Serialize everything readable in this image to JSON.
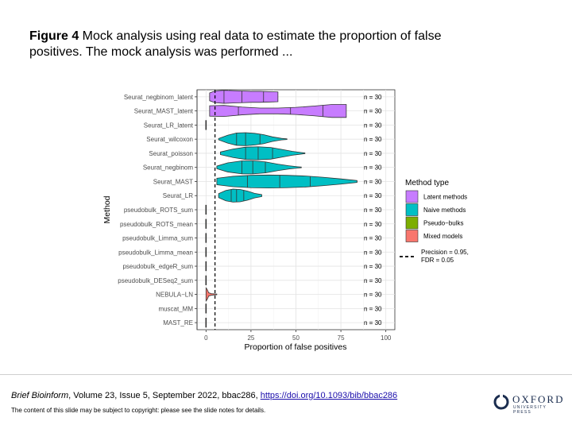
{
  "caption": {
    "figure_label": "Figure 4",
    "text": " Mock analysis using real data to estimate the proportion of false positives. The mock analysis was performed ..."
  },
  "chart_data": {
    "type": "violin",
    "xlabel": "Proportion of false positives",
    "ylabel": "Method",
    "xlim": [
      -5,
      105
    ],
    "xticks": [
      0,
      25,
      50,
      75,
      100
    ],
    "reference_line": {
      "x": 5,
      "label": "Precision = 0.95, FDR = 0.05"
    },
    "legend": {
      "title": "Method type",
      "position": "right",
      "entries": [
        {
          "name": "Latent methods",
          "color": "#C77CFF"
        },
        {
          "name": "Naive methods",
          "color": "#00BFC4"
        },
        {
          "name": "Pseudo−bulks",
          "color": "#7CAE00"
        },
        {
          "name": "Mixed models",
          "color": "#F8766D"
        }
      ]
    },
    "methods": [
      {
        "name": "Seurat_negbinom_latent",
        "type": "Latent methods",
        "n_label": "n = 30",
        "min": 2,
        "max": 40,
        "quantiles": [
          10,
          20,
          32
        ],
        "profile": [
          [
            2,
            0.6
          ],
          [
            5,
            0.9
          ],
          [
            10,
            1
          ],
          [
            15,
            0.95
          ],
          [
            20,
            0.9
          ],
          [
            25,
            0.85
          ],
          [
            30,
            0.85
          ],
          [
            35,
            0.8
          ],
          [
            40,
            0.75
          ]
        ]
      },
      {
        "name": "Seurat_MAST_latent",
        "type": "Latent methods",
        "n_label": "n = 30",
        "min": 2,
        "max": 78,
        "quantiles": [
          18,
          47,
          65
        ],
        "profile": [
          [
            2,
            0.8
          ],
          [
            10,
            0.85
          ],
          [
            20,
            0.6
          ],
          [
            30,
            0.45
          ],
          [
            40,
            0.45
          ],
          [
            50,
            0.55
          ],
          [
            60,
            0.75
          ],
          [
            70,
            1
          ],
          [
            78,
            1
          ]
        ]
      },
      {
        "name": "Seurat_LR_latent",
        "type": "Latent methods",
        "n_label": "n = 30",
        "min": 0,
        "max": 0.5,
        "quantiles": [],
        "profile": [
          [
            0,
            0.8
          ],
          [
            0.5,
            0.8
          ]
        ]
      },
      {
        "name": "Seurat_wilcoxon",
        "type": "Naive methods",
        "n_label": "n = 30",
        "min": 7,
        "max": 45,
        "quantiles": [
          17,
          22,
          30
        ],
        "profile": [
          [
            7,
            0.1
          ],
          [
            12,
            0.6
          ],
          [
            17,
            0.95
          ],
          [
            22,
            1
          ],
          [
            27,
            0.9
          ],
          [
            32,
            0.7
          ],
          [
            37,
            0.35
          ],
          [
            42,
            0.12
          ],
          [
            45,
            0.05
          ]
        ]
      },
      {
        "name": "Seurat_poisson",
        "type": "Naive methods",
        "n_label": "n = 30",
        "min": 8,
        "max": 55,
        "quantiles": [
          22,
          29,
          37
        ],
        "profile": [
          [
            8,
            0.2
          ],
          [
            15,
            0.65
          ],
          [
            22,
            0.95
          ],
          [
            29,
            1
          ],
          [
            36,
            0.9
          ],
          [
            42,
            0.6
          ],
          [
            48,
            0.3
          ],
          [
            53,
            0.12
          ],
          [
            55,
            0.05
          ]
        ]
      },
      {
        "name": "Seurat_negbinom",
        "type": "Naive methods",
        "n_label": "n = 30",
        "min": 6,
        "max": 53,
        "quantiles": [
          20,
          26,
          33
        ],
        "profile": [
          [
            6,
            0.2
          ],
          [
            12,
            0.7
          ],
          [
            20,
            1
          ],
          [
            26,
            1
          ],
          [
            33,
            0.85
          ],
          [
            40,
            0.5
          ],
          [
            46,
            0.25
          ],
          [
            51,
            0.1
          ],
          [
            53,
            0.05
          ]
        ]
      },
      {
        "name": "Seurat_MAST",
        "type": "Naive methods",
        "n_label": "n = 30",
        "min": 6,
        "max": 84,
        "quantiles": [
          23,
          41,
          58
        ],
        "profile": [
          [
            6,
            0.5
          ],
          [
            15,
            0.8
          ],
          [
            25,
            0.95
          ],
          [
            35,
            1
          ],
          [
            45,
            0.95
          ],
          [
            55,
            0.85
          ],
          [
            65,
            0.65
          ],
          [
            75,
            0.4
          ],
          [
            84,
            0.15
          ]
        ]
      },
      {
        "name": "Seurat_LR",
        "type": "Naive methods",
        "n_label": "n = 30",
        "min": 7,
        "max": 31,
        "quantiles": [
          14,
          17,
          21
        ],
        "profile": [
          [
            7,
            0.3
          ],
          [
            11,
            0.8
          ],
          [
            15,
            1
          ],
          [
            19,
            0.95
          ],
          [
            23,
            0.7
          ],
          [
            27,
            0.35
          ],
          [
            31,
            0.15
          ]
        ]
      },
      {
        "name": "pseudobulk_ROTS_sum",
        "type": "Pseudo−bulks",
        "n_label": "n = 30",
        "min": 0,
        "max": 0.3,
        "quantiles": [],
        "profile": [
          [
            0,
            0.5
          ],
          [
            0.3,
            0.5
          ]
        ]
      },
      {
        "name": "pseudobulk_ROTS_mean",
        "type": "Pseudo−bulks",
        "n_label": "n = 30",
        "min": 0,
        "max": 0.3,
        "quantiles": [],
        "profile": [
          [
            0,
            0.5
          ],
          [
            0.3,
            0.5
          ]
        ]
      },
      {
        "name": "pseudobulk_Limma_sum",
        "type": "Pseudo−bulks",
        "n_label": "n = 30",
        "min": 0,
        "max": 0.3,
        "quantiles": [],
        "profile": [
          [
            0,
            0.5
          ],
          [
            0.3,
            0.5
          ]
        ]
      },
      {
        "name": "pseudobulk_Limma_mean",
        "type": "Pseudo−bulks",
        "n_label": "n = 30",
        "min": 0,
        "max": 0.3,
        "quantiles": [],
        "profile": [
          [
            0,
            0.5
          ],
          [
            0.3,
            0.5
          ]
        ]
      },
      {
        "name": "pseudobulk_edgeR_sum",
        "type": "Pseudo−bulks",
        "n_label": "n = 30",
        "min": 0,
        "max": 0.3,
        "quantiles": [],
        "profile": [
          [
            0,
            0.5
          ],
          [
            0.3,
            0.5
          ]
        ]
      },
      {
        "name": "pseudobulk_DESeq2_sum",
        "type": "Pseudo−bulks",
        "n_label": "n = 30",
        "min": 0,
        "max": 0.3,
        "quantiles": [],
        "profile": [
          [
            0,
            0.5
          ],
          [
            0.3,
            0.5
          ]
        ]
      },
      {
        "name": "NEBULA−LN",
        "type": "Mixed models",
        "n_label": "n = 30",
        "min": 0,
        "max": 6,
        "quantiles": [],
        "profile": [
          [
            0,
            1
          ],
          [
            0.6,
            0.8
          ],
          [
            1.5,
            0.25
          ],
          [
            3,
            0.12
          ],
          [
            6,
            0.05
          ]
        ]
      },
      {
        "name": "muscat_MM",
        "type": "Mixed models",
        "n_label": "n = 30",
        "min": 0,
        "max": 0.3,
        "quantiles": [],
        "profile": [
          [
            0,
            0.5
          ],
          [
            0.3,
            0.5
          ]
        ]
      },
      {
        "name": "MAST_RE",
        "type": "Mixed models",
        "n_label": "n = 30",
        "min": 0,
        "max": 0.3,
        "quantiles": [],
        "profile": [
          [
            0,
            0.5
          ],
          [
            0.3,
            0.5
          ]
        ]
      }
    ]
  },
  "footer": {
    "journal": "Brief Bioinform",
    "details": ", Volume 23, Issue 5, September 2022, bbac286, ",
    "doi": "https://doi.org/10.1093/bib/bbac286",
    "notice": "The content of this slide may be subject to copyright: please see the slide notes for details.",
    "logo_word": "OXFORD",
    "logo_sub": "UNIVERSITY PRESS"
  }
}
